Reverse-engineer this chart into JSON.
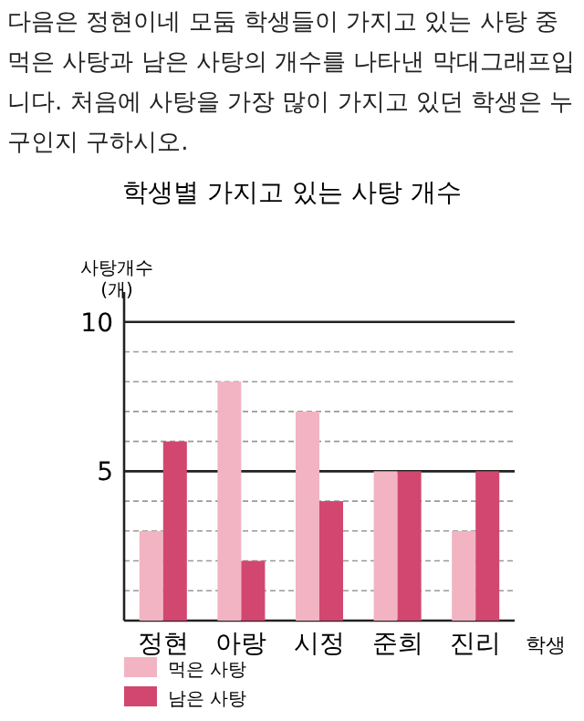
{
  "chart_data": {
    "type": "bar",
    "subtitle": "다음은 정현이네 모둠 학생들이 가지고 있는 사탕 중 먹은 사탕과 남은 사탕의 개수를 나타낸 막대그래프입니다. 처음에 사탕을 가장 많이 가지고 있던 학생은 누구인지 구하시오.",
    "title": "학생별 가지고 있는 사탕 개수",
    "ylabel": "사탕개수 (개)",
    "xlabel": "학생",
    "categories": [
      "정현",
      "아랑",
      "시정",
      "준희",
      "진리"
    ],
    "series": [
      {
        "name": "먹은 사탕",
        "color": "#f2b4c2",
        "values": [
          3,
          8,
          7,
          5,
          3
        ]
      },
      {
        "name": "남은 사탕",
        "color": "#d2476f",
        "values": [
          6,
          2,
          4,
          5,
          5
        ]
      }
    ],
    "ylim": [
      0,
      11
    ],
    "yticks": [
      {
        "value": 1,
        "label": null
      },
      {
        "value": 2,
        "label": null
      },
      {
        "value": 3,
        "label": null
      },
      {
        "value": 4,
        "label": null
      },
      5,
      {
        "value": 6,
        "label": null
      },
      {
        "value": 7,
        "label": null
      },
      {
        "value": 8,
        "label": null
      },
      {
        "value": 9,
        "label": null
      },
      10
    ],
    "grid": "y",
    "legend": "bottom left"
  }
}
